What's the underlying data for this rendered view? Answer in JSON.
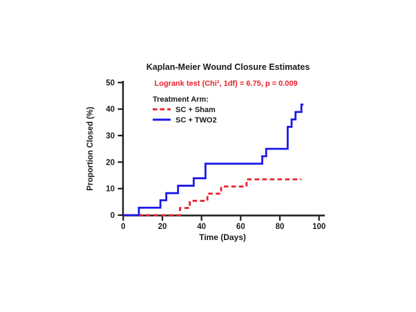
{
  "chart_data": {
    "type": "line",
    "subtype": "kaplan-meier-step",
    "title": "Kaplan-Meier Wound Closure Estimates",
    "annotation": "Logrank test (Chi², 1df) = 6.75, p = 0.009",
    "annotation_color": "#e8212b",
    "xlabel": "Time (Days)",
    "ylabel": "Proportion Closed (%)",
    "xlim": [
      0,
      100
    ],
    "ylim": [
      0,
      50
    ],
    "xticks": [
      0,
      20,
      40,
      60,
      80,
      100
    ],
    "yticks": [
      0,
      10,
      20,
      30,
      40,
      50
    ],
    "grid": false,
    "legend": {
      "title": "Treatment Arm:",
      "position": "upper-left-inside"
    },
    "series": [
      {
        "name": "SC + Sham",
        "color": "#e8212b",
        "style": "dashed",
        "start": [
          0,
          0
        ],
        "steps": [
          [
            29,
            2.7
          ],
          [
            34,
            5.4
          ],
          [
            43,
            8.1
          ],
          [
            50,
            10.8
          ],
          [
            63,
            13.5
          ]
        ],
        "end_day": 91,
        "final_value": 13.5
      },
      {
        "name": "SC + TWO2",
        "color": "#1b18e8",
        "style": "solid",
        "start": [
          0,
          0
        ],
        "steps": [
          [
            8,
            2.8
          ],
          [
            19,
            5.6
          ],
          [
            22,
            8.3
          ],
          [
            28,
            11.1
          ],
          [
            36,
            13.9
          ],
          [
            42,
            19.4
          ],
          [
            71,
            22.2
          ],
          [
            73,
            25.0
          ],
          [
            84,
            33.3
          ],
          [
            86,
            36.1
          ],
          [
            88,
            38.9
          ],
          [
            91,
            41.7
          ]
        ],
        "end_day": 92,
        "final_value": 41.7
      }
    ]
  }
}
